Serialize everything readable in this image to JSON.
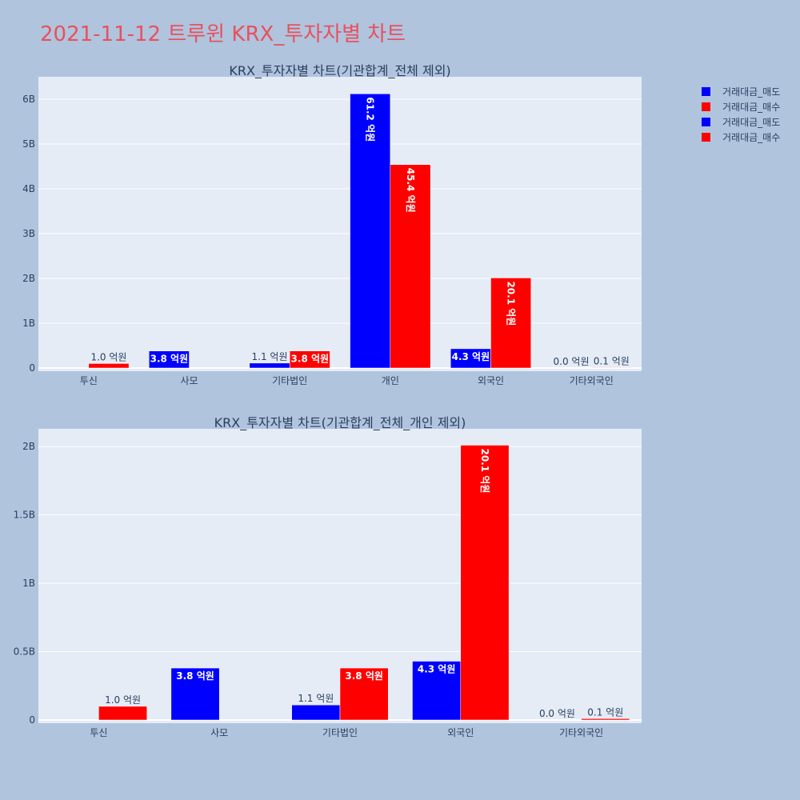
{
  "title": "2021-11-12 트루윈 KRX_투자자별 차트",
  "legend": [
    {
      "name": "거래대금_매도",
      "color": "#0000ff"
    },
    {
      "name": "거래대금_매수",
      "color": "#ff0000"
    },
    {
      "name": "거래대금_매도",
      "color": "#0000ff"
    },
    {
      "name": "거래대금_매수",
      "color": "#ff0000"
    }
  ],
  "colors": {
    "sell": "#0000ff",
    "buy": "#ff0000",
    "plot_bg": "#e5ecf6",
    "page_bg": "#b0c4de",
    "title": "#e8515d"
  },
  "chart_data": [
    {
      "type": "bar",
      "title": "KRX_투자자별 차트(기관합계_전체 제외)",
      "categories": [
        "투신",
        "사모",
        "기타법인",
        "개인",
        "외국인",
        "기타외국인"
      ],
      "ylim": [
        0,
        6500000000
      ],
      "yticks": [
        0,
        1000000000,
        2000000000,
        3000000000,
        4000000000,
        5000000000,
        6000000000
      ],
      "ytick_labels": [
        "0",
        "1B",
        "2B",
        "3B",
        "4B",
        "5B",
        "6B"
      ],
      "series": [
        {
          "name": "거래대금_매도",
          "values": [
            0,
            380000000,
            110000000,
            6120000000,
            430000000,
            0
          ],
          "labels": [
            "",
            "3.8 억원",
            "1.1 억원",
            "61.2 억원",
            "4.3 억원",
            "0.0 억원"
          ]
        },
        {
          "name": "거래대금_매수",
          "values": [
            100000000,
            0,
            380000000,
            4540000000,
            2010000000,
            10000000
          ],
          "labels": [
            "1.0 억원",
            "",
            "3.8 억원",
            "45.4 억원",
            "20.1 억원",
            "0.1 억원"
          ]
        }
      ]
    },
    {
      "type": "bar",
      "title": "KRX_투자자별 차트(기관합계_전체_개인 제외)",
      "categories": [
        "투신",
        "사모",
        "기타법인",
        "외국인",
        "기타외국인"
      ],
      "ylim": [
        0,
        2130000000
      ],
      "yticks": [
        0,
        500000000,
        1000000000,
        1500000000,
        2000000000
      ],
      "ytick_labels": [
        "0",
        "0.5B",
        "1B",
        "1.5B",
        "2B"
      ],
      "series": [
        {
          "name": "거래대금_매도",
          "values": [
            0,
            380000000,
            110000000,
            430000000,
            0
          ],
          "labels": [
            "",
            "3.8 억원",
            "1.1 억원",
            "4.3 억원",
            "0.0 억원"
          ]
        },
        {
          "name": "거래대금_매수",
          "values": [
            100000000,
            0,
            380000000,
            2010000000,
            10000000
          ],
          "labels": [
            "1.0 억원",
            "",
            "3.8 억원",
            "20.1 억원",
            "0.1 억원"
          ]
        }
      ]
    }
  ]
}
